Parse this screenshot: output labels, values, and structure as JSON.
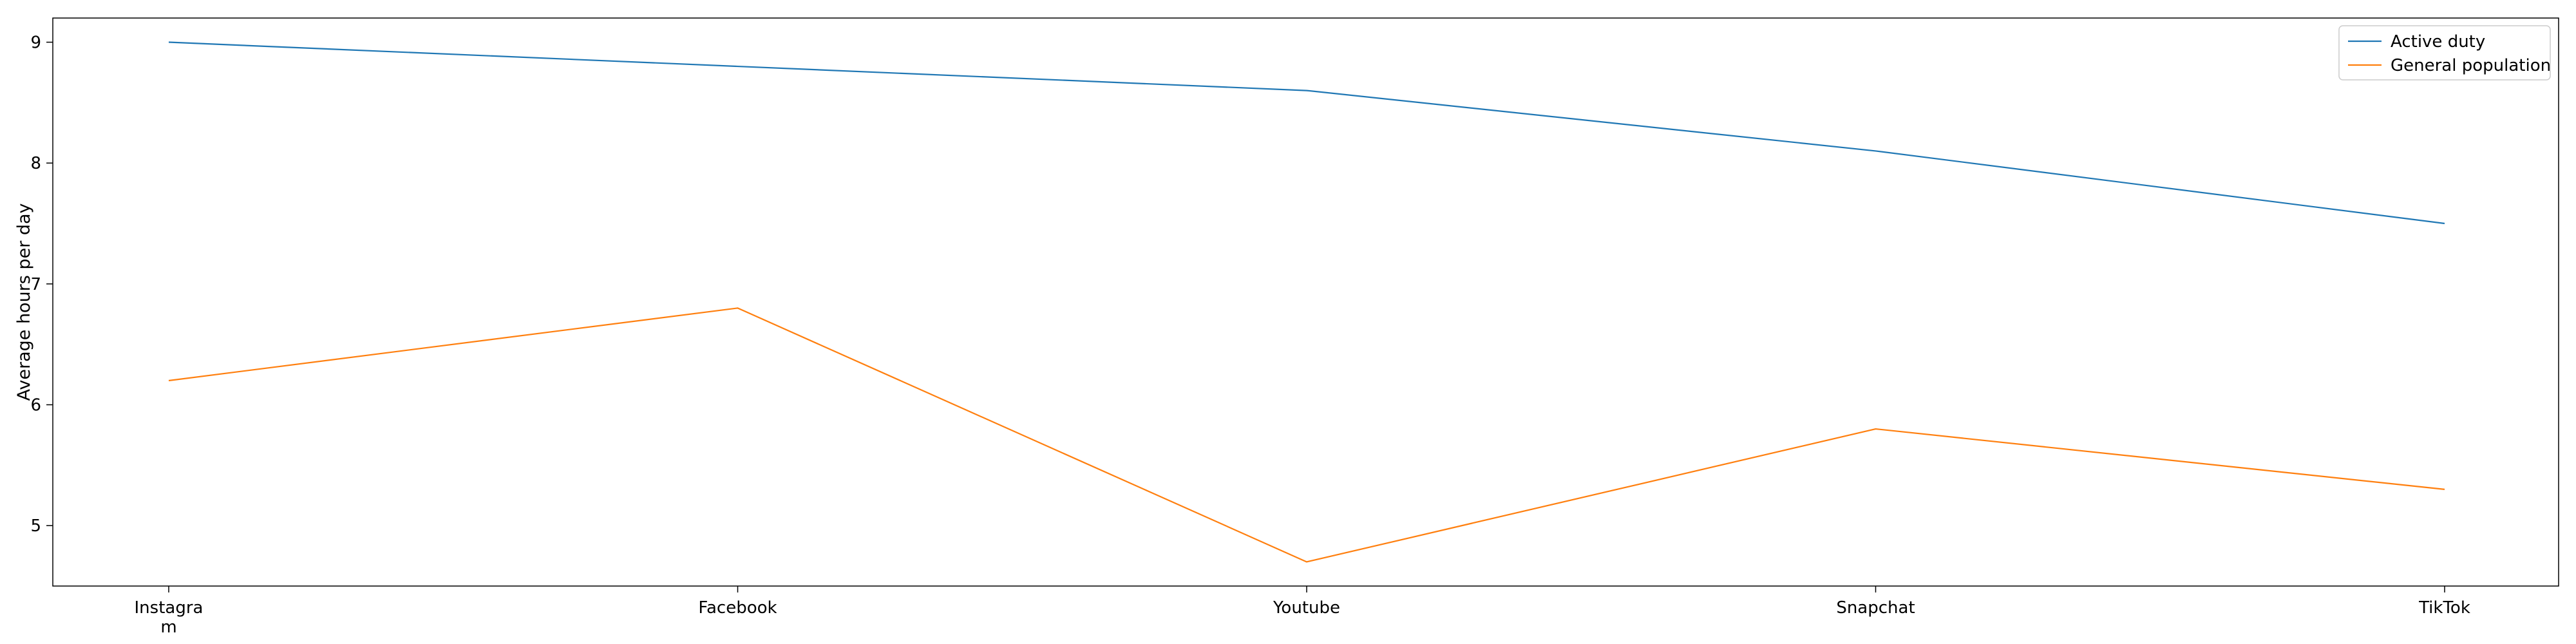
{
  "chart_data": {
    "type": "line",
    "categories": [
      "Instagra\nm",
      "Facebook",
      "Youtube",
      "Snapchat",
      "TikTok"
    ],
    "series": [
      {
        "name": "Active duty",
        "values": [
          9.0,
          8.8,
          8.6,
          8.1,
          7.5
        ],
        "color": "#1f77b4"
      },
      {
        "name": "General population",
        "values": [
          6.2,
          6.8,
          4.7,
          5.8,
          5.3
        ],
        "color": "#ff7f0e"
      }
    ],
    "ylabel": "Average hours per day",
    "yticks": [
      5,
      6,
      7,
      8,
      9
    ],
    "ylim": [
      4.5,
      9.2
    ],
    "grid": false,
    "legend_position": "top-right"
  }
}
